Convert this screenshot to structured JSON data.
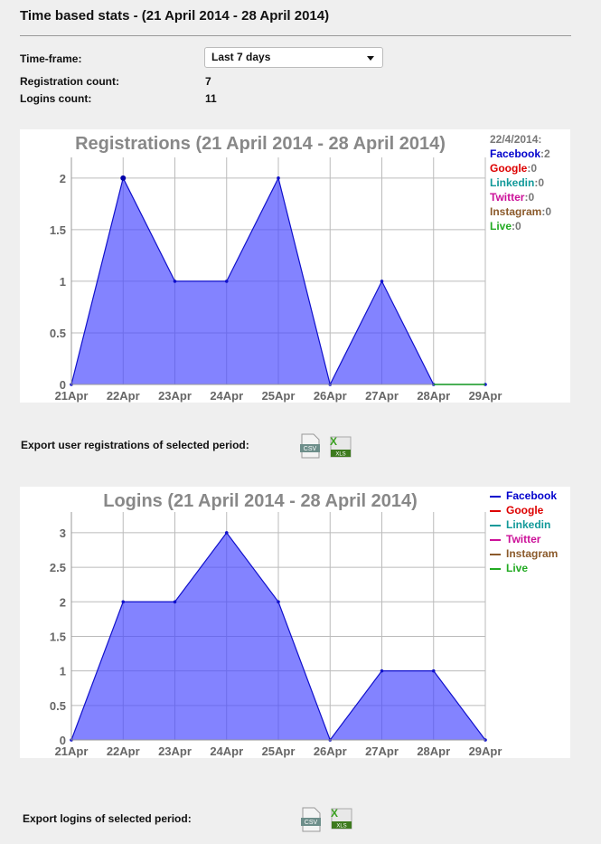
{
  "header": {
    "title": "Time based stats - (21 April 2014 - 28 April 2014)"
  },
  "form": {
    "timeframe_label": "Time-frame:",
    "timeframe_value": "Last 7 days",
    "registration_label": "Registration count:",
    "registration_value": "7",
    "logins_label": "Logins count:",
    "logins_value": "11"
  },
  "charts": {
    "registrations": {
      "legend_date": "22/4/2014:",
      "legend": [
        {
          "name": "Facebook",
          "value": "2",
          "color": "#0000cc"
        },
        {
          "name": "Google",
          "value": "0",
          "color": "#dd0000"
        },
        {
          "name": "Linkedin",
          "value": "0",
          "color": "#119999"
        },
        {
          "name": "Twitter",
          "value": "0",
          "color": "#cc1199"
        },
        {
          "name": "Instagram",
          "value": "0",
          "color": "#8b5a2b"
        },
        {
          "name": "Live",
          "value": "0",
          "color": "#22aa22"
        }
      ]
    },
    "logins": {
      "legend": [
        {
          "name": "Facebook",
          "color": "#0000cc"
        },
        {
          "name": "Google",
          "color": "#dd0000"
        },
        {
          "name": "Linkedin",
          "color": "#119999"
        },
        {
          "name": "Twitter",
          "color": "#cc1199"
        },
        {
          "name": "Instagram",
          "color": "#8b5a2b"
        },
        {
          "name": "Live",
          "color": "#22aa22"
        }
      ]
    }
  },
  "exports": {
    "registrations_label": "Export user registrations of selected period:",
    "logins_label": "Export logins of selected period:",
    "csv_label": "CSV",
    "xls_label": "XLS",
    "xls_mark": "X"
  },
  "chart_data": [
    {
      "type": "area",
      "title": "Registrations (21 April 2014 - 28 April 2014)",
      "categories": [
        "21Apr",
        "22Apr",
        "23Apr",
        "24Apr",
        "25Apr",
        "26Apr",
        "27Apr",
        "28Apr",
        "29Apr"
      ],
      "yticks": [
        "0",
        "0.5",
        "1",
        "1.5",
        "2"
      ],
      "ylim": [
        0,
        2.2
      ],
      "series": [
        {
          "name": "Facebook",
          "values": [
            0,
            2,
            1,
            1,
            2,
            0,
            1,
            0,
            0
          ]
        }
      ],
      "grid": true,
      "legend_placement": "right"
    },
    {
      "type": "area",
      "title": "Logins (21 April 2014 - 28 April 2014)",
      "categories": [
        "21Apr",
        "22Apr",
        "23Apr",
        "24Apr",
        "25Apr",
        "26Apr",
        "27Apr",
        "28Apr",
        "29Apr"
      ],
      "yticks": [
        "0",
        "0.5",
        "1",
        "1.5",
        "2",
        "2.5",
        "3"
      ],
      "ylim": [
        0,
        3.3
      ],
      "series": [
        {
          "name": "Facebook",
          "values": [
            0,
            2,
            2,
            3,
            2,
            0,
            1,
            1,
            0
          ]
        }
      ],
      "grid": true,
      "legend_placement": "right"
    }
  ]
}
